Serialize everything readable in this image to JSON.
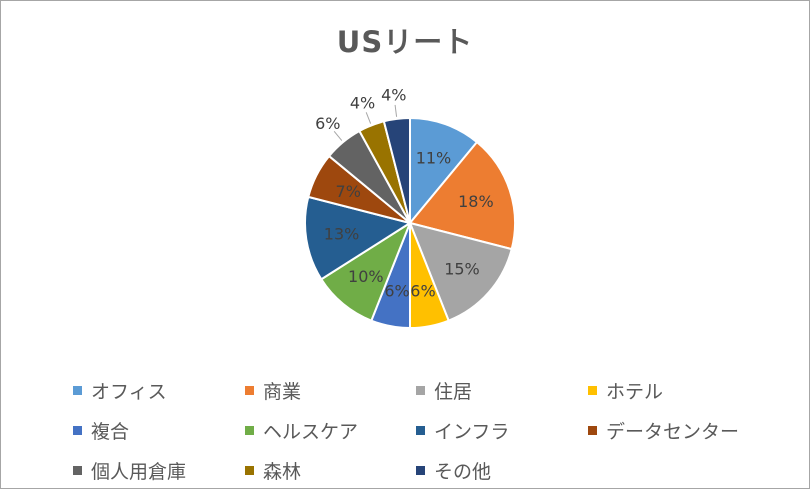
{
  "chart_data": {
    "type": "pie",
    "title": "USリート",
    "start_angle_deg": 0,
    "direction": "clockwise",
    "legend_position": "bottom",
    "slices": [
      {
        "label": "オフィス",
        "value": 11,
        "display": "11%",
        "color": "#5B9BD5",
        "label_color": "#404040"
      },
      {
        "label": "商業",
        "value": 18,
        "display": "18%",
        "color": "#ED7D31",
        "label_color": "#404040"
      },
      {
        "label": "住居",
        "value": 15,
        "display": "15%",
        "color": "#A5A5A5",
        "label_color": "#404040"
      },
      {
        "label": "ホテル",
        "value": 6,
        "display": "6%",
        "color": "#FFC000",
        "label_color": "#404040"
      },
      {
        "label": "複合",
        "value": 6,
        "display": "6%",
        "color": "#4472C4",
        "label_color": "#404040"
      },
      {
        "label": "ヘルスケア",
        "value": 10,
        "display": "10%",
        "color": "#70AD47",
        "label_color": "#404040"
      },
      {
        "label": "インフラ",
        "value": 13,
        "display": "13%",
        "color": "#255E91",
        "label_color": "#404040"
      },
      {
        "label": "データセンター",
        "value": 7,
        "display": "7%",
        "color": "#9E480E",
        "label_color": "#404040"
      },
      {
        "label": "個人用倉庫",
        "value": 6,
        "display": "6%",
        "color": "#636363",
        "label_color": "#404040"
      },
      {
        "label": "森林",
        "value": 4,
        "display": "4%",
        "color": "#997300",
        "label_color": "#404040"
      },
      {
        "label": "その他",
        "value": 4,
        "display": "4%",
        "color": "#264478",
        "label_color": "#404040"
      }
    ],
    "legend_entries": [
      "オフィス",
      "商業",
      "住居",
      "ホテル",
      "複合",
      " ヘルスケア",
      "インフラ",
      "データセンター",
      "個人用倉庫",
      "森林",
      "その他"
    ]
  }
}
